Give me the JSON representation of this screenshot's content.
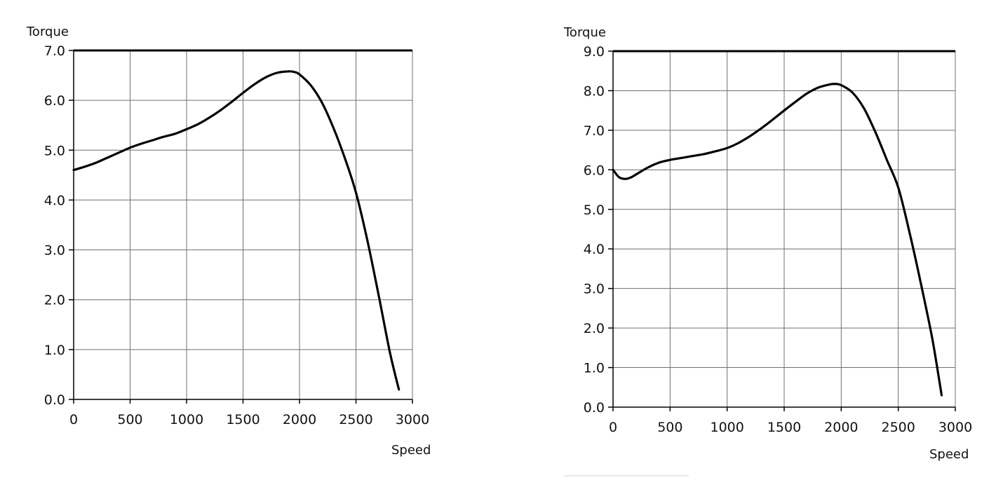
{
  "chart_data": [
    {
      "type": "line",
      "ylabel": "Torque",
      "xlabel": "Speed",
      "xlim": [
        0,
        3000
      ],
      "ylim": [
        0,
        7
      ],
      "xticks": [
        "0",
        "500",
        "1000",
        "1500",
        "2000",
        "2500",
        "3000"
      ],
      "yticks": [
        "0.0",
        "1.0",
        "2.0",
        "3.0",
        "4.0",
        "5.0",
        "6.0",
        "7.0"
      ],
      "grid": true,
      "series": [
        {
          "x": [
            0,
            100,
            200,
            300,
            400,
            500,
            600,
            700,
            800,
            900,
            1000,
            1100,
            1200,
            1300,
            1400,
            1500,
            1600,
            1700,
            1800,
            1900,
            1950,
            2000,
            2100,
            2200,
            2300,
            2400,
            2500,
            2600,
            2700,
            2800,
            2880
          ],
          "y": [
            4.6,
            4.67,
            4.75,
            4.85,
            4.95,
            5.05,
            5.13,
            5.2,
            5.27,
            5.33,
            5.42,
            5.52,
            5.65,
            5.8,
            5.97,
            6.15,
            6.32,
            6.46,
            6.55,
            6.58,
            6.57,
            6.52,
            6.3,
            5.95,
            5.45,
            4.85,
            4.15,
            3.2,
            2.1,
            0.95,
            0.2
          ]
        }
      ]
    },
    {
      "type": "line",
      "ylabel": "Torque",
      "xlabel": "Speed",
      "xlim": [
        0,
        3000
      ],
      "ylim": [
        0,
        9
      ],
      "xticks": [
        "0",
        "500",
        "1000",
        "1500",
        "2000",
        "2500",
        "3000"
      ],
      "yticks": [
        "0.0",
        "1.0",
        "2.0",
        "3.0",
        "4.0",
        "5.0",
        "6.0",
        "7.0",
        "8.0",
        "9.0"
      ],
      "grid": true,
      "series": [
        {
          "x": [
            0,
            50,
            100,
            150,
            200,
            300,
            400,
            500,
            600,
            700,
            800,
            900,
            1000,
            1100,
            1200,
            1300,
            1400,
            1500,
            1600,
            1700,
            1800,
            1900,
            1950,
            2000,
            2100,
            2200,
            2300,
            2400,
            2500,
            2600,
            2700,
            2800,
            2880
          ],
          "y": [
            6.0,
            5.82,
            5.77,
            5.8,
            5.88,
            6.05,
            6.18,
            6.25,
            6.3,
            6.35,
            6.4,
            6.47,
            6.55,
            6.68,
            6.85,
            7.05,
            7.27,
            7.5,
            7.72,
            7.93,
            8.08,
            8.16,
            8.17,
            8.14,
            7.95,
            7.55,
            6.95,
            6.25,
            5.55,
            4.4,
            3.1,
            1.7,
            0.3
          ]
        }
      ]
    }
  ]
}
